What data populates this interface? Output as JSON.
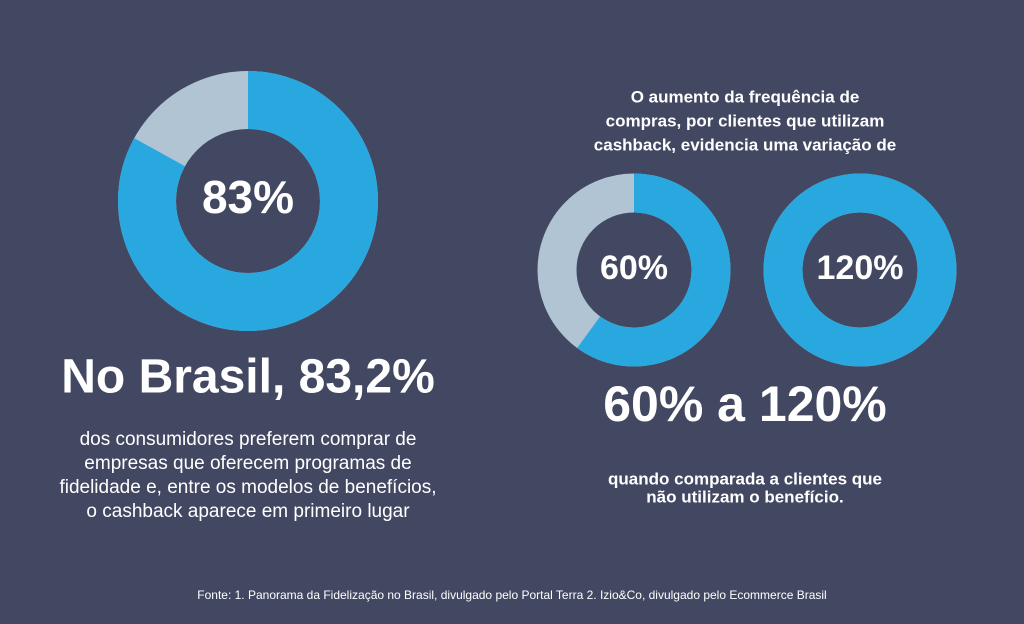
{
  "chart_data": [
    {
      "type": "donut",
      "values": [
        83
      ],
      "value_labels": [
        "83%"
      ],
      "color": "#29a8e0",
      "track_color": "#b0c4d4"
    },
    {
      "type": "donut",
      "values": [
        60
      ],
      "value_labels": [
        "60%"
      ],
      "color": "#29a8e0",
      "track_color": "#b0c4d4"
    },
    {
      "type": "donut",
      "values": [
        120
      ],
      "value_labels": [
        "120%"
      ],
      "color": "#29a8e0",
      "track_color": "#b0c4d4"
    }
  ],
  "left": {
    "headline": "No Brasil, 83,2%",
    "body": [
      "dos consumidores preferem comprar de",
      "empresas que oferecem programas de",
      "fidelidade e, entre os modelos de benefícios,",
      "o cashback aparece em primeiro lugar"
    ]
  },
  "right": {
    "intro": [
      "O aumento da frequência de",
      "compras, por clientes que utilizam",
      "cashback, evidencia uma variação de"
    ],
    "range": "60% a 120%",
    "outro": [
      "quando comparada a clientes que",
      "não utilizam o benefício."
    ]
  },
  "source": "Fonte: 1. Panorama da Fidelização no Brasil, divulgado pelo Portal Terra 2. Izio&Co, divulgado pelo Ecommerce Brasil"
}
